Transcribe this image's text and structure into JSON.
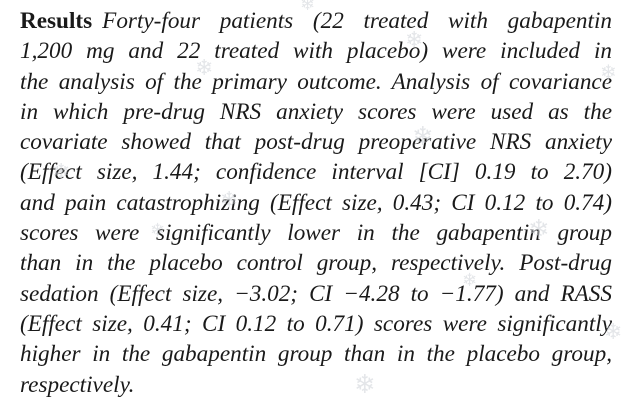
{
  "section": {
    "heading": "Results",
    "lines": [
      "Forty-four patients (22 treated with gabapentin",
      "1,200 mg and 22 treated with placebo) were included in",
      "the analysis of the primary outcome. Analysis of covariance",
      "in which pre-drug NRS anxiety scores were used as the",
      "covariate showed that post-drug preoperative NRS anxiety",
      "(Effect size, 1.44; confidence interval [CI] 0.19 to 2.70)",
      "and pain catastrophizing (Effect size, 0.43; CI 0.12 to 0.74)",
      "scores were significantly lower in the gabapentin group",
      "than in the placebo control group, respectively. Post-drug",
      "sedation (Effect size, −3.02; CI −4.28 to −1.77) and RASS",
      "(Effect size, 0.41; CI 0.12 to 0.71) scores were significantly",
      "higher in the gabapentin group than in the placebo group,",
      "respectively."
    ]
  },
  "decorations": {
    "watermark_icon": "snowflake-icon",
    "watermark_color": "#cfd3d8"
  }
}
